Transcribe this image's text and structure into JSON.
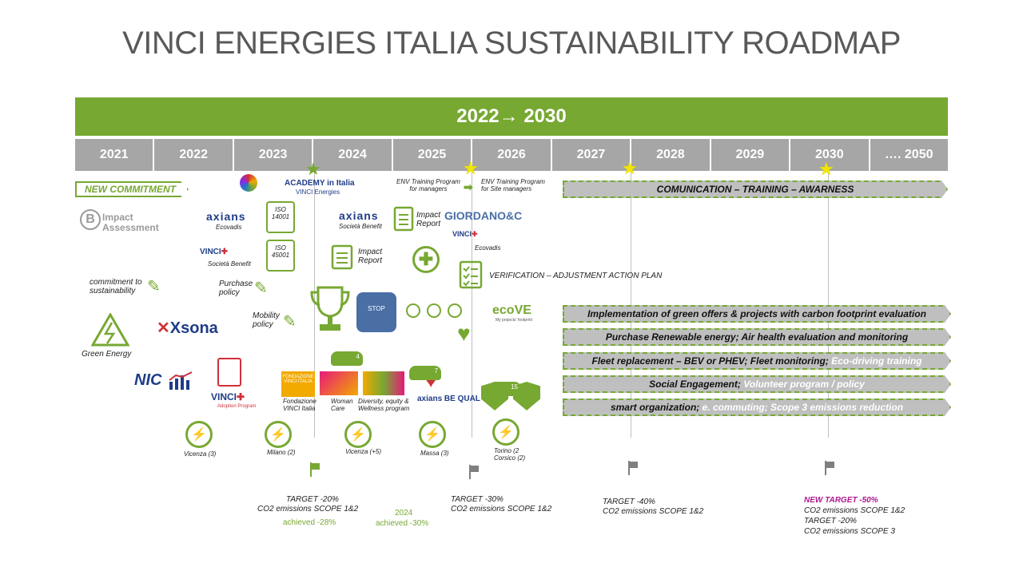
{
  "title": "VINCI ENERGIES ITALIA SUSTAINABILITY ROADMAP",
  "banner": "2022→ 2030",
  "years": [
    "2021",
    "2022",
    "2023",
    "2024",
    "2025",
    "2026",
    "2027",
    "2028",
    "2029",
    "2030",
    "…. 2050"
  ],
  "new_commitment": "NEW COMMITMENT",
  "items": {
    "impact_assessment": "Impact\nAssessment",
    "axians": "axians",
    "ecovadis": "Ecovadis",
    "iso14001": "ISO 14001",
    "iso45001": "ISO 45001",
    "societa_benefit": "Società Benefit",
    "academy": "ACADEMY in Italia",
    "academy_sub": "VINCI Energies",
    "commitment": "commitment to sustainability",
    "purchase_policy": "Purchase policy",
    "mobility_policy": "Mobility policy",
    "green_energy": "Green Energy",
    "xsona": "Xsona",
    "nic": "NIC",
    "vinci_adoption": "VINCI",
    "adoption_program": "Adoption Program",
    "fondazione": "Fondazione VINCI Italia",
    "woman_care": "Woman Care",
    "diversity": "Diversity, equity & Wellness program",
    "bequal": "axians BE QUAL",
    "axians_2024": "axians",
    "societa_benefit_2024": "Società Benefit",
    "impact_report_1": "Impact Report",
    "impact_report_2": "Impact Report",
    "env_training_managers": "ENV Training Program for managers",
    "env_training_site": "ENV Training Program for Site managers",
    "giordano": "GIORDANO&C",
    "vinci_building": "VINCI",
    "ecovadis_2026": "Ecovadis",
    "verification": "VERIFICATION – ADJUSTMENT ACTION PLAN",
    "ecove": "ecoVE",
    "ecove_sub": "My projects' footprint"
  },
  "bars": {
    "communication": "COMUNICATION – TRAINING – AWARNESS",
    "green_offers": "Implementation of green offers & projects with carbon footprint evaluation",
    "renewable": "Purchase Renewable energy; Air health evaluation and monitoring",
    "fleet_a": "Fleet replacement – BEV or PHEV; Fleet monitoring;",
    "fleet_b": "Eco-driving training",
    "social_a": "Social Engagement;",
    "social_b": "Volunteer program / policy",
    "smart_a": "smart organization;",
    "smart_b": "e. commuting; Scope 3 emissions reduction"
  },
  "chargers": [
    {
      "label": "Vicenza (3)"
    },
    {
      "label": "Milano (2)"
    },
    {
      "label": "Vicenza (+5)"
    },
    {
      "label": "Massa (3)"
    },
    {
      "label": "Torino (2\nCorsico (2)"
    }
  ],
  "cars": [
    "4",
    "7",
    "15"
  ],
  "targets": {
    "t2024_a": "TARGET -20%",
    "t2024_b": "CO2 emissions SCOPE 1&2",
    "t2024_ach": "achieved -28%",
    "t2024b_year": "2024",
    "t2024b_ach": "achieved -30%",
    "t2026_a": "TARGET -30%",
    "t2026_b": "CO2 emissions SCOPE 1&2",
    "t2028_a": "TARGET -40%",
    "t2028_b": "CO2 emissions SCOPE 1&2",
    "t2030_a": "NEW TARGET -50%",
    "t2030_b": "CO2 emissions SCOPE 1&2",
    "t2030_c": "TARGET -20%",
    "t2030_d": "CO2 emissions SCOPE 3"
  },
  "colors": {
    "green": "#77a832",
    "grey": "#a6a6a6",
    "star": "#f2e600",
    "magenta": "#b0168f"
  }
}
